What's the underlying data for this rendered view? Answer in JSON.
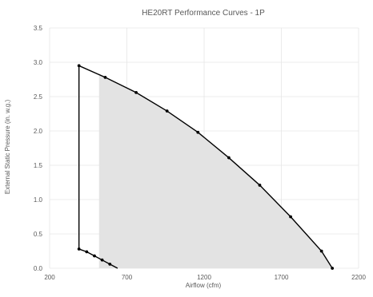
{
  "chart_data": {
    "type": "line",
    "title": "HE20RT Performance Curves - 1P",
    "xlabel": "Airflow (cfm)",
    "ylabel": "External Static Pressure (in. w.g.)",
    "xlim": [
      200,
      2200
    ],
    "ylim": [
      0,
      3.5
    ],
    "x_ticks": [
      200,
      700,
      1200,
      1700,
      2200
    ],
    "y_ticks": [
      0.0,
      0.5,
      1.0,
      1.5,
      2.0,
      2.5,
      3.0,
      3.5
    ],
    "grid": true,
    "legend": "none",
    "colors": {
      "line": "#000000",
      "shade": "#e3e3e3",
      "grid": "#e6e6e6",
      "text": "#595959"
    },
    "shaded_region": {
      "x": [
        520,
        560,
        760,
        960,
        1160,
        1360,
        1560,
        1760,
        1960,
        2030
      ],
      "y": [
        2.84,
        2.78,
        2.56,
        2.29,
        1.98,
        1.61,
        1.21,
        0.75,
        0.25,
        0.0
      ]
    },
    "series": [
      {
        "role": "fan-curve",
        "x": [
          390,
          560,
          760,
          960,
          1160,
          1360,
          1560,
          1760,
          1960,
          2030
        ],
        "y": [
          2.95,
          2.78,
          2.56,
          2.29,
          1.98,
          1.61,
          1.21,
          0.75,
          0.25,
          0.0
        ],
        "markers": [
          true,
          true,
          true,
          true,
          true,
          true,
          true,
          true,
          true,
          true
        ]
      },
      {
        "role": "min-airflow-limit",
        "x": [
          390,
          390
        ],
        "y": [
          2.95,
          0.28
        ],
        "markers": [
          false,
          false
        ]
      },
      {
        "role": "system-curve",
        "x": [
          390,
          440,
          490,
          540,
          590,
          640
        ],
        "y": [
          0.28,
          0.24,
          0.18,
          0.12,
          0.06,
          0.0
        ],
        "markers": [
          true,
          true,
          true,
          true,
          true,
          false
        ]
      }
    ]
  }
}
